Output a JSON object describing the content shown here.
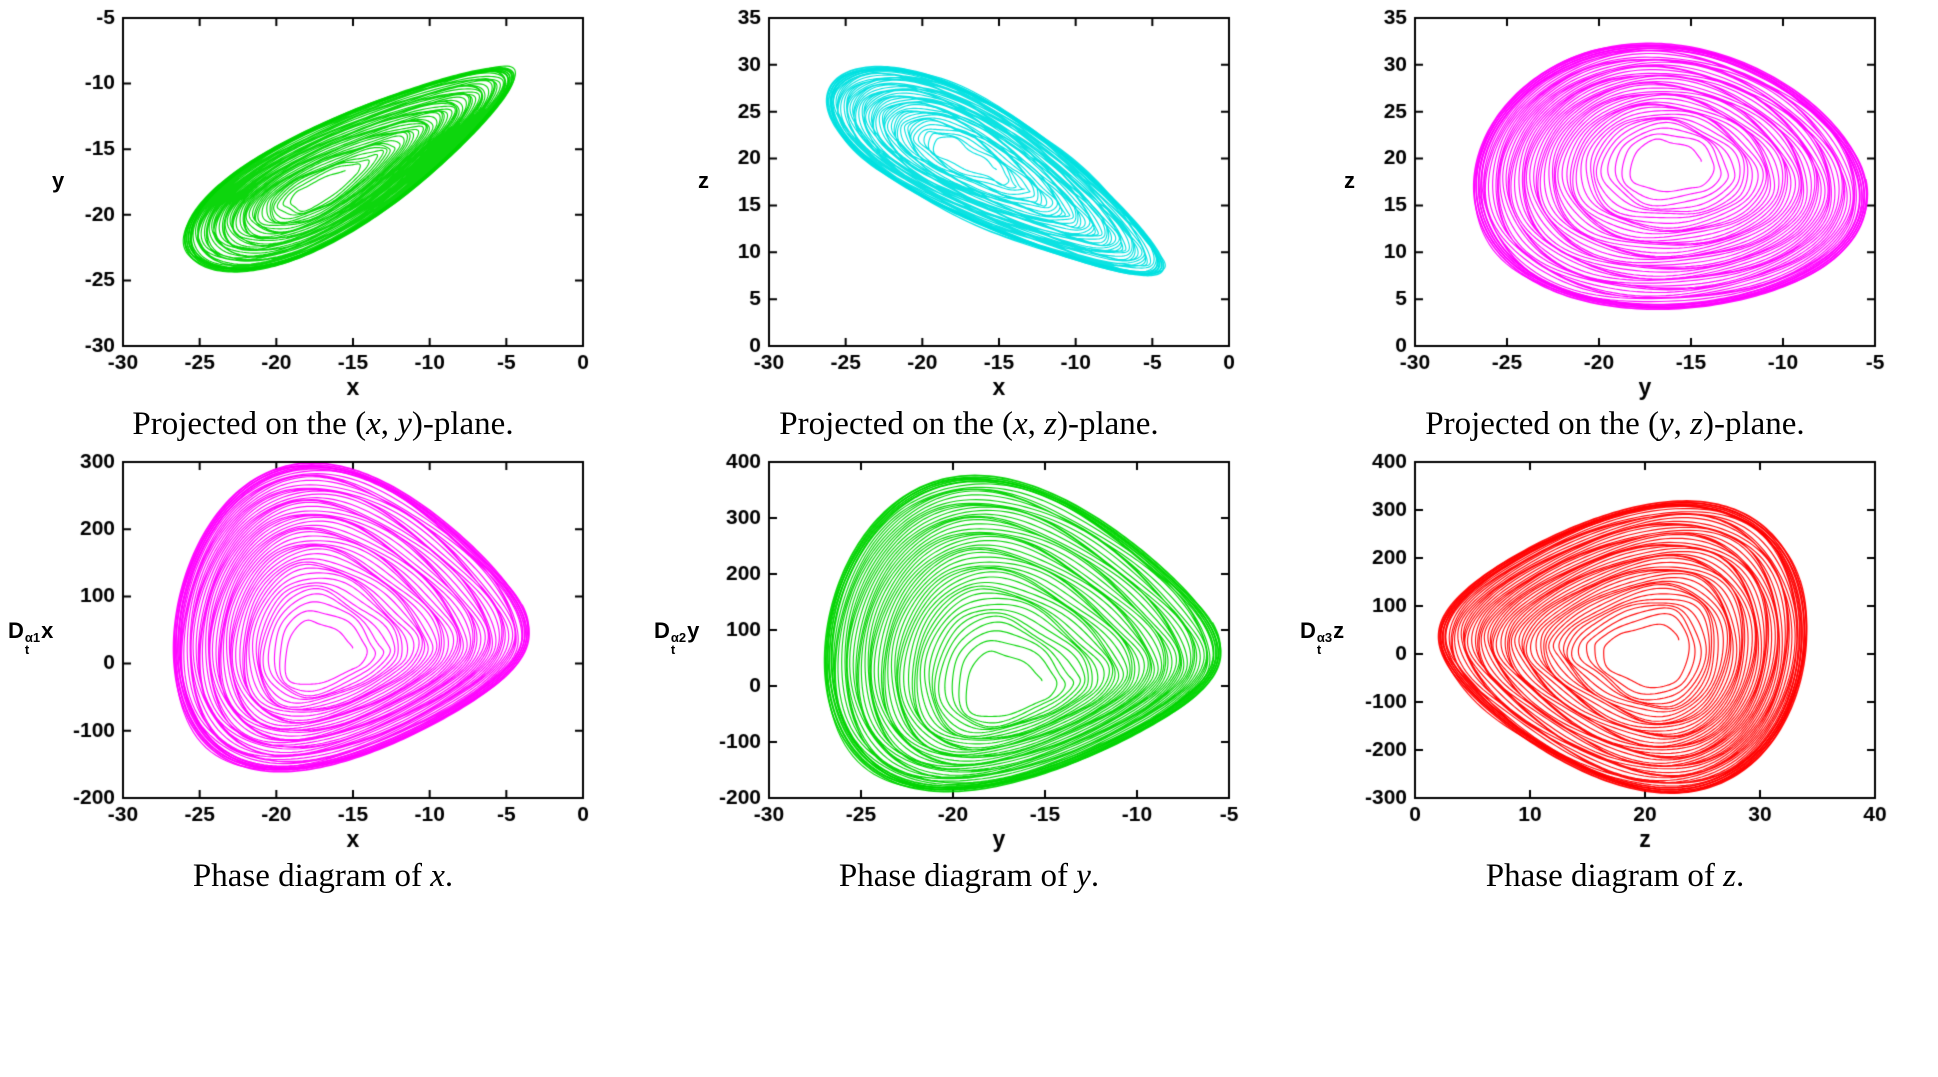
{
  "figure": {
    "background": "#ffffff",
    "description": "Six phase portraits of a chaotic attractor: three plane projections and three phase diagrams"
  },
  "chart_data": [
    {
      "id": "projection-xy",
      "type": "line",
      "kind": "phase-portrait-projection",
      "color": "#00d400",
      "xlabel": "x",
      "ylabel_parts": {
        "pre": "y",
        "sup": "",
        "sub": "",
        "post": ""
      },
      "xlim": [
        -30,
        0
      ],
      "ylim": [
        -30,
        -5
      ],
      "xticks": [
        -30,
        -25,
        -20,
        -15,
        -10,
        -5,
        0
      ],
      "yticks": [
        -30,
        -25,
        -20,
        -15,
        -10,
        -5
      ],
      "caption": "Projected on the (x, y)-plane.",
      "caption_parts": [
        {
          "t": "Projected on the ("
        },
        {
          "t": "x",
          "i": true
        },
        {
          "t": ", "
        },
        {
          "t": "y",
          "i": true
        },
        {
          "t": ")-plane."
        }
      ],
      "attractor": {
        "cx": 0.5,
        "cy": 0.55,
        "hx": 0.433,
        "hy": 0.48,
        "rx": 0.45,
        "ry": 0.145,
        "rot": 40,
        "m": 0.35,
        "inner": 0.16,
        "loops": 52
      }
    },
    {
      "id": "projection-xz",
      "type": "line",
      "kind": "phase-portrait-projection",
      "color": "#00e0e0",
      "xlabel": "x",
      "ylabel_parts": {
        "pre": "z",
        "sup": "",
        "sub": "",
        "post": ""
      },
      "xlim": [
        -30,
        0
      ],
      "ylim": [
        0,
        35
      ],
      "xticks": [
        -30,
        -25,
        -20,
        -15,
        -10,
        -5,
        0
      ],
      "yticks": [
        0,
        5,
        10,
        15,
        20,
        25,
        30,
        35
      ],
      "caption": "Projected on the (x, z)-plane.",
      "caption_parts": [
        {
          "t": "Projected on the ("
        },
        {
          "t": "x",
          "i": true
        },
        {
          "t": ", "
        },
        {
          "t": "z",
          "i": true
        },
        {
          "t": ")-plane."
        }
      ],
      "attractor": {
        "cx": 0.5,
        "cy": 0.52,
        "hx": 0.433,
        "hy": 0.571,
        "rx": 0.46,
        "ry": 0.15,
        "rot": -40,
        "m": 0.35,
        "inner": 0.16,
        "loops": 52
      }
    },
    {
      "id": "projection-yz",
      "type": "line",
      "kind": "phase-portrait-projection",
      "color": "#ff00ff",
      "xlabel": "y",
      "ylabel_parts": {
        "pre": "z",
        "sup": "",
        "sub": "",
        "post": ""
      },
      "xlim": [
        -30,
        -5
      ],
      "ylim": [
        0,
        35
      ],
      "xticks": [
        -30,
        -25,
        -20,
        -15,
        -10,
        -5
      ],
      "yticks": [
        0,
        5,
        10,
        15,
        20,
        25,
        30,
        35
      ],
      "caption": "Projected on the (y, z)-plane.",
      "caption_parts": [
        {
          "t": "Projected on the ("
        },
        {
          "t": "y",
          "i": true
        },
        {
          "t": ", "
        },
        {
          "t": "z",
          "i": true
        },
        {
          "t": ")-plane."
        }
      ],
      "attractor": {
        "cx": 0.56,
        "cy": 0.5,
        "hx": 0.555,
        "hy": 0.555,
        "rx": 0.43,
        "ry": 0.4,
        "rot": -18,
        "m": 0.15,
        "inner": 0.15,
        "loops": 50
      }
    },
    {
      "id": "phase-diagram-x",
      "type": "line",
      "kind": "phase-diagram",
      "color": "#ff00ff",
      "xlabel": "x",
      "ylabel_parts": {
        "pre": "D",
        "sup": "α1",
        "sub": "t",
        "post": "x"
      },
      "xlim": [
        -30,
        0
      ],
      "ylim": [
        -200,
        300
      ],
      "xticks": [
        -30,
        -25,
        -20,
        -15,
        -10,
        -5,
        0
      ],
      "yticks": [
        -200,
        -100,
        0,
        100,
        200,
        300
      ],
      "caption": "Phase diagram of x.",
      "caption_parts": [
        {
          "t": "Phase diagram of "
        },
        {
          "t": "x",
          "i": true
        },
        {
          "t": "."
        }
      ],
      "attractor": {
        "cx": 0.5,
        "cy": 0.52,
        "hx": 0.433,
        "hy": 0.43,
        "rx": 0.385,
        "ry": 0.43,
        "rot": -8,
        "m": 0.42,
        "inner": 0.17,
        "loops": 50
      }
    },
    {
      "id": "phase-diagram-y",
      "type": "line",
      "kind": "phase-diagram",
      "color": "#00d400",
      "xlabel": "y",
      "ylabel_parts": {
        "pre": "D",
        "sup": "α2",
        "sub": "t",
        "post": "y"
      },
      "xlim": [
        -30,
        -5
      ],
      "ylim": [
        -200,
        400
      ],
      "xticks": [
        -30,
        -25,
        -20,
        -15,
        -10,
        -5
      ],
      "yticks": [
        -200,
        -100,
        0,
        100,
        200,
        300,
        400
      ],
      "caption": "Phase diagram of y.",
      "caption_parts": [
        {
          "t": "Phase diagram of "
        },
        {
          "t": "y",
          "i": true
        },
        {
          "t": "."
        }
      ],
      "attractor": {
        "cx": 0.555,
        "cy": 0.47,
        "hx": 0.52,
        "hy": 0.333,
        "rx": 0.43,
        "ry": 0.44,
        "rot": -8,
        "m": 0.42,
        "inner": 0.17,
        "loops": 50
      }
    },
    {
      "id": "phase-diagram-z",
      "type": "line",
      "kind": "phase-diagram",
      "color": "#ff0000",
      "xlabel": "z",
      "ylabel_parts": {
        "pre": "D",
        "sup": "α3",
        "sub": "t",
        "post": "z"
      },
      "xlim": [
        0,
        40
      ],
      "ylim": [
        -300,
        400
      ],
      "xticks": [
        0,
        10,
        20,
        30,
        40
      ],
      "yticks": [
        -300,
        -200,
        -100,
        0,
        100,
        200,
        300,
        400
      ],
      "caption": "Phase diagram of z.",
      "caption_parts": [
        {
          "t": "Phase diagram of "
        },
        {
          "t": "z",
          "i": true
        },
        {
          "t": "."
        }
      ],
      "attractor": {
        "cx": 0.45,
        "cy": 0.46,
        "hx": 0.5,
        "hy": 0.43,
        "rx": 0.4,
        "ry": 0.41,
        "rot": -5,
        "m": -0.38,
        "inner": 0.18,
        "loops": 50
      }
    }
  ]
}
